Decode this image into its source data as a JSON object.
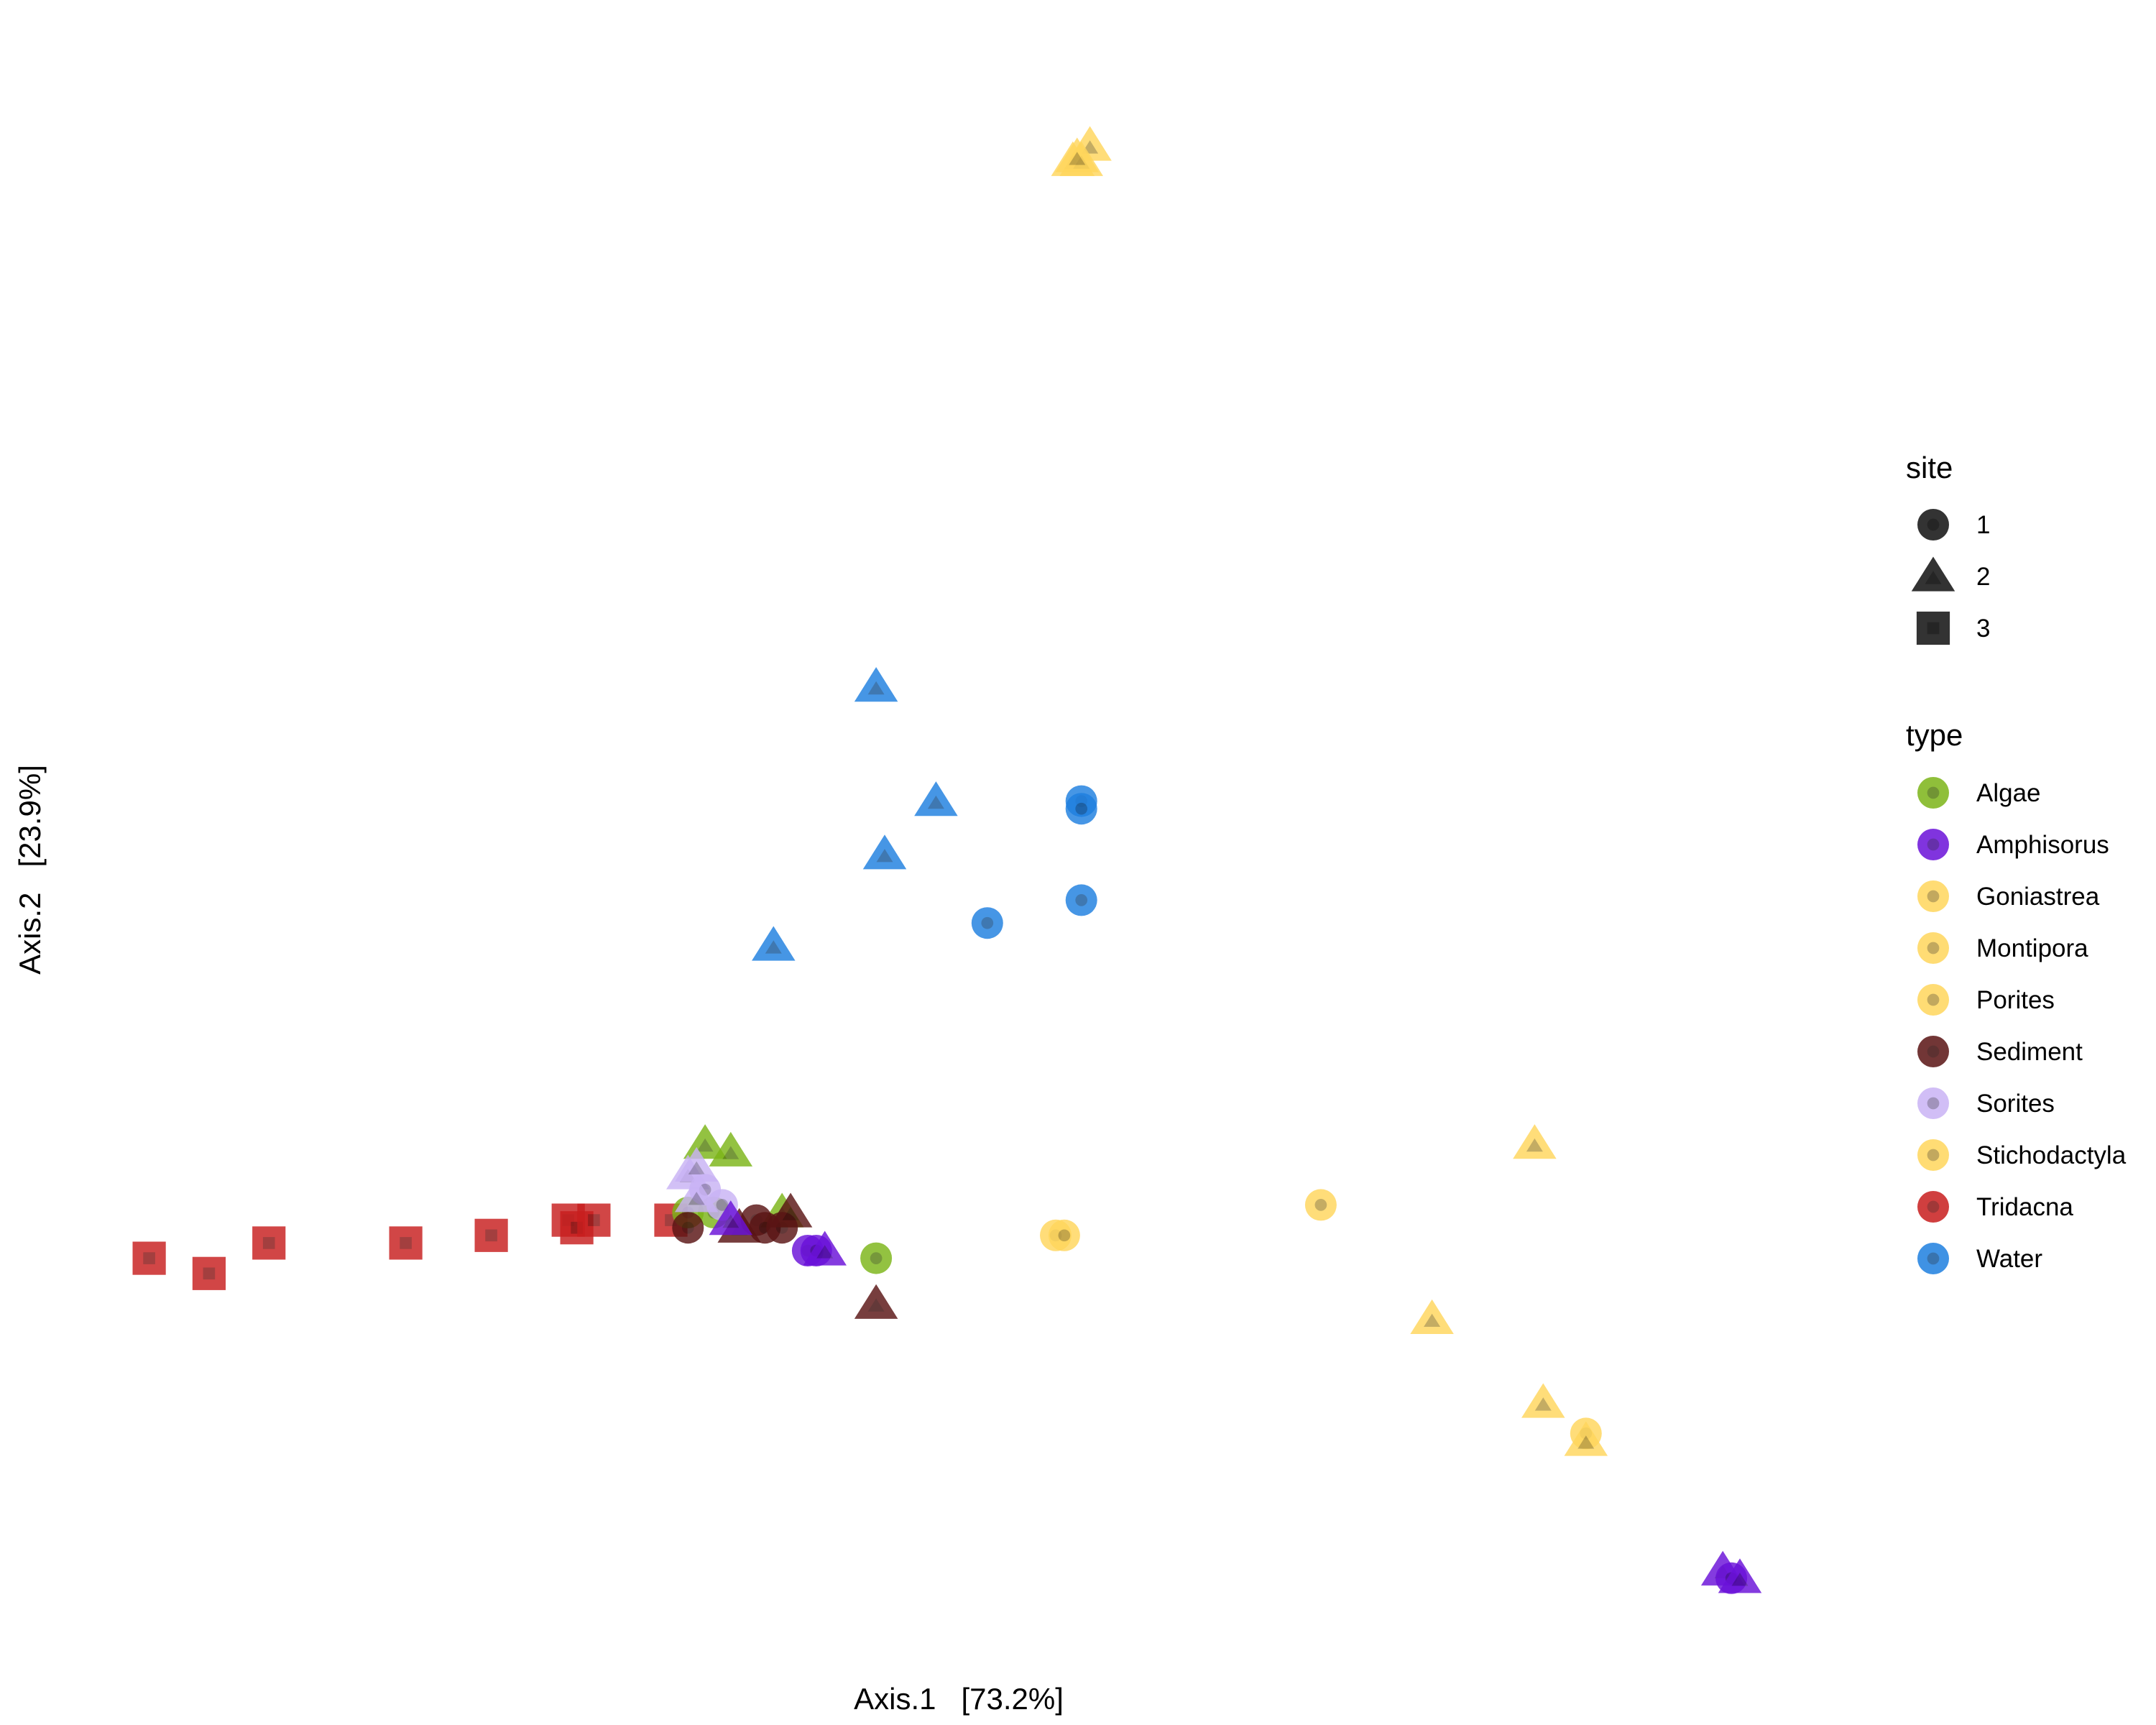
{
  "chart_data": {
    "type": "scatter",
    "xlabel": "Axis.1   [73.2%]",
    "ylabel": "Axis.2   [23.9%]",
    "xlim": [
      -1.0,
      1.0
    ],
    "ylim": [
      -1.0,
      1.0
    ],
    "grid": false,
    "legend_position": "right",
    "legends": {
      "site": {
        "title": "site",
        "entries": [
          {
            "label": "1",
            "shape": "circle"
          },
          {
            "label": "2",
            "shape": "triangle"
          },
          {
            "label": "3",
            "shape": "square"
          }
        ]
      },
      "type": {
        "title": "type",
        "entries": [
          {
            "label": "Algae",
            "color": "#7CB518"
          },
          {
            "label": "Amphisorus",
            "color": "#6A11D9"
          },
          {
            "label": "Goniastrea",
            "color": "#FFD65C"
          },
          {
            "label": "Montipora",
            "color": "#FFD65C"
          },
          {
            "label": "Porites",
            "color": "#FFD65C"
          },
          {
            "label": "Sediment",
            "color": "#5A1414"
          },
          {
            "label": "Sorites",
            "color": "#C9B3F5"
          },
          {
            "label": "Stichodactyla",
            "color": "#FFD65C"
          },
          {
            "label": "Tridacna",
            "color": "#C81E1E"
          },
          {
            "label": "Water",
            "color": "#1E7FE0"
          }
        ]
      }
    },
    "points": [
      {
        "x": -0.96,
        "y": -0.51,
        "type": "Tridacna",
        "site": "3"
      },
      {
        "x": -0.89,
        "y": -0.53,
        "type": "Tridacna",
        "site": "3"
      },
      {
        "x": -0.82,
        "y": -0.49,
        "type": "Tridacna",
        "site": "3"
      },
      {
        "x": -0.66,
        "y": -0.49,
        "type": "Tridacna",
        "site": "3"
      },
      {
        "x": -0.56,
        "y": -0.48,
        "type": "Tridacna",
        "site": "3"
      },
      {
        "x": -0.47,
        "y": -0.46,
        "type": "Tridacna",
        "site": "3"
      },
      {
        "x": -0.46,
        "y": -0.47,
        "type": "Tridacna",
        "site": "3"
      },
      {
        "x": -0.44,
        "y": -0.46,
        "type": "Tridacna",
        "site": "3"
      },
      {
        "x": -0.35,
        "y": -0.46,
        "type": "Tridacna",
        "site": "3"
      },
      {
        "x": -0.31,
        "y": -0.36,
        "type": "Algae",
        "site": "2"
      },
      {
        "x": -0.28,
        "y": -0.37,
        "type": "Algae",
        "site": "2"
      },
      {
        "x": -0.33,
        "y": -0.45,
        "type": "Algae",
        "site": "1"
      },
      {
        "x": -0.3,
        "y": -0.45,
        "type": "Algae",
        "site": "1"
      },
      {
        "x": -0.22,
        "y": -0.45,
        "type": "Algae",
        "site": "2"
      },
      {
        "x": -0.11,
        "y": -0.51,
        "type": "Algae",
        "site": "1"
      },
      {
        "x": -0.33,
        "y": -0.4,
        "type": "Sorites",
        "site": "2"
      },
      {
        "x": -0.32,
        "y": -0.39,
        "type": "Sorites",
        "site": "2"
      },
      {
        "x": -0.31,
        "y": -0.42,
        "type": "Sorites",
        "site": "1"
      },
      {
        "x": -0.32,
        "y": -0.43,
        "type": "Sorites",
        "site": "2"
      },
      {
        "x": -0.29,
        "y": -0.44,
        "type": "Sorites",
        "site": "1"
      },
      {
        "x": -0.33,
        "y": -0.47,
        "type": "Sediment",
        "site": "1"
      },
      {
        "x": -0.27,
        "y": -0.47,
        "type": "Sediment",
        "site": "2"
      },
      {
        "x": -0.25,
        "y": -0.46,
        "type": "Sediment",
        "site": "1"
      },
      {
        "x": -0.24,
        "y": -0.47,
        "type": "Sediment",
        "site": "1"
      },
      {
        "x": -0.22,
        "y": -0.47,
        "type": "Sediment",
        "site": "1"
      },
      {
        "x": -0.21,
        "y": -0.45,
        "type": "Sediment",
        "site": "2"
      },
      {
        "x": -0.11,
        "y": -0.57,
        "type": "Sediment",
        "site": "2"
      },
      {
        "x": -0.28,
        "y": -0.46,
        "type": "Amphisorus",
        "site": "2"
      },
      {
        "x": -0.19,
        "y": -0.5,
        "type": "Amphisorus",
        "site": "1"
      },
      {
        "x": -0.18,
        "y": -0.5,
        "type": "Amphisorus",
        "site": "1"
      },
      {
        "x": -0.17,
        "y": -0.5,
        "type": "Amphisorus",
        "site": "2"
      },
      {
        "x": 0.88,
        "y": -0.92,
        "type": "Amphisorus",
        "site": "2"
      },
      {
        "x": 0.89,
        "y": -0.93,
        "type": "Amphisorus",
        "site": "1"
      },
      {
        "x": 0.9,
        "y": -0.93,
        "type": "Amphisorus",
        "site": "2"
      },
      {
        "x": -0.11,
        "y": 0.24,
        "type": "Water",
        "site": "2"
      },
      {
        "x": -0.04,
        "y": 0.09,
        "type": "Water",
        "site": "2"
      },
      {
        "x": -0.1,
        "y": 0.02,
        "type": "Water",
        "site": "2"
      },
      {
        "x": -0.23,
        "y": -0.1,
        "type": "Water",
        "site": "2"
      },
      {
        "x": 0.13,
        "y": 0.09,
        "type": "Water",
        "site": "1"
      },
      {
        "x": 0.13,
        "y": 0.08,
        "type": "Water",
        "site": "1"
      },
      {
        "x": 0.02,
        "y": -0.07,
        "type": "Water",
        "site": "1"
      },
      {
        "x": 0.13,
        "y": -0.04,
        "type": "Water",
        "site": "1"
      },
      {
        "x": 0.14,
        "y": 0.95,
        "type": "Goniastrea",
        "site": "2"
      },
      {
        "x": 0.12,
        "y": 0.93,
        "type": "Montipora",
        "site": "2"
      },
      {
        "x": 0.13,
        "y": 0.93,
        "type": "Porites",
        "site": "2"
      },
      {
        "x": 0.125,
        "y": 0.935,
        "type": "Stichodactyla",
        "site": "2"
      },
      {
        "x": 0.1,
        "y": -0.48,
        "type": "Porites",
        "site": "1"
      },
      {
        "x": 0.11,
        "y": -0.48,
        "type": "Montipora",
        "site": "1"
      },
      {
        "x": 0.41,
        "y": -0.44,
        "type": "Goniastrea",
        "site": "1"
      },
      {
        "x": 0.66,
        "y": -0.36,
        "type": "Montipora",
        "site": "2"
      },
      {
        "x": 0.54,
        "y": -0.59,
        "type": "Porites",
        "site": "2"
      },
      {
        "x": 0.67,
        "y": -0.7,
        "type": "Goniastrea",
        "site": "2"
      },
      {
        "x": 0.72,
        "y": -0.74,
        "type": "Stichodactyla",
        "site": "1"
      },
      {
        "x": 0.72,
        "y": -0.75,
        "type": "Stichodactyla",
        "site": "2"
      }
    ]
  }
}
